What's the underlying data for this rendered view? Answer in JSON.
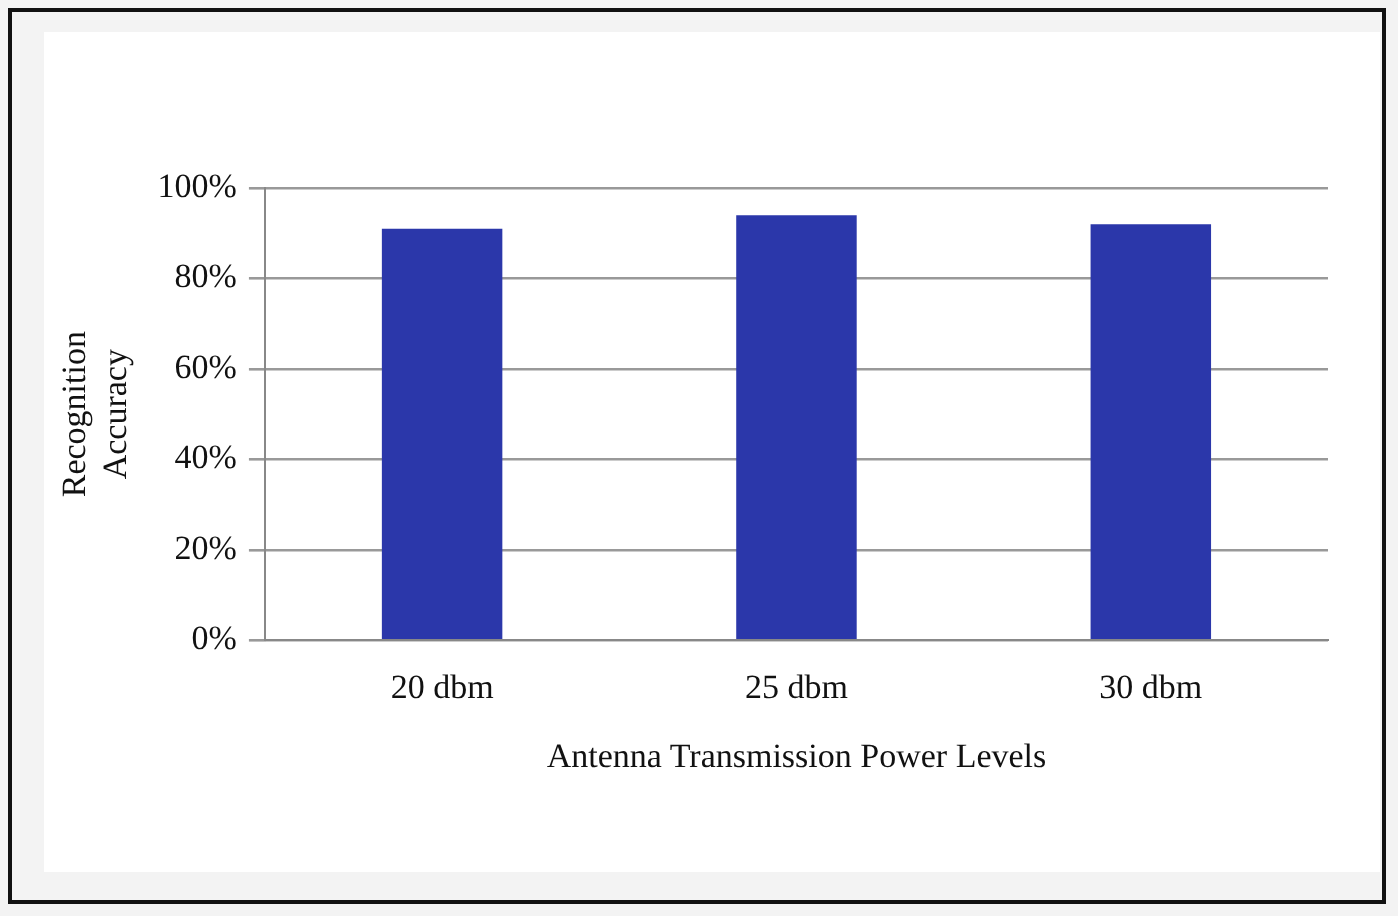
{
  "chart_data": {
    "type": "bar",
    "xlabel": "Antenna Transmission Power Levels",
    "ylabel": "Recognition Accuracy",
    "categories": [
      "20 dbm",
      "25 dbm",
      "30 dbm"
    ],
    "values": [
      91,
      94,
      92
    ],
    "color": "#2b37aa",
    "ylim": [
      0,
      100
    ],
    "yticks": [
      {
        "value": 0,
        "label": "0%"
      },
      {
        "value": 20,
        "label": "20%"
      },
      {
        "value": 40,
        "label": "40%"
      },
      {
        "value": 60,
        "label": "60%"
      },
      {
        "value": 80,
        "label": "80%"
      },
      {
        "value": 100,
        "label": "100%"
      }
    ],
    "grid": "y",
    "legend": false
  }
}
